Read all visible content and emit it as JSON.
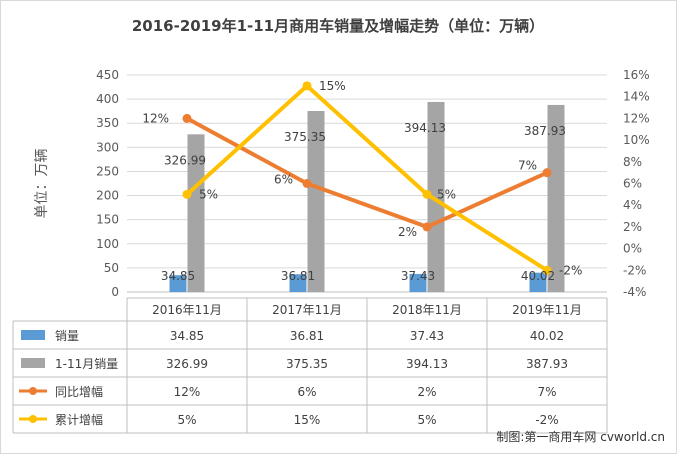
{
  "chart_data": {
    "type": "bar",
    "title": "2016-2019年1-11月商用车销量及增幅走势（单位：万辆）",
    "ylabel": "单位：万辆",
    "categories": [
      "2016年11月",
      "2017年11月",
      "2018年11月",
      "2019年11月"
    ],
    "ylim": [
      0,
      450
    ],
    "y2lim": [
      -4,
      16
    ],
    "yticks": [
      "0",
      "50",
      "100",
      "150",
      "200",
      "250",
      "300",
      "350",
      "400",
      "450"
    ],
    "y2ticks": [
      "-4%",
      "-2%",
      "0%",
      "2%",
      "4%",
      "6%",
      "8%",
      "10%",
      "12%",
      "14%",
      "16%"
    ],
    "series": [
      {
        "name": "销量",
        "type": "bar",
        "axis": "left",
        "color": "#5b9bd5",
        "values": [
          34.85,
          36.81,
          37.43,
          40.02
        ],
        "labels": [
          "34.85",
          "36.81",
          "37.43",
          "40.02"
        ]
      },
      {
        "name": "1-11月销量",
        "type": "bar",
        "axis": "left",
        "color": "#a5a5a5",
        "values": [
          326.99,
          375.35,
          394.13,
          387.93
        ],
        "labels": [
          "326.99",
          "375.35",
          "394.13",
          "387.93"
        ]
      },
      {
        "name": "同比增幅",
        "type": "line",
        "axis": "right",
        "color": "#ed7d31",
        "values": [
          12,
          6,
          2,
          7
        ],
        "labels": [
          "12%",
          "6%",
          "2%",
          "7%"
        ]
      },
      {
        "name": "累计增幅",
        "type": "line",
        "axis": "right",
        "color": "#ffc000",
        "values": [
          5,
          15,
          5,
          -2
        ],
        "labels": [
          "5%",
          "15%",
          "5%",
          "-2%"
        ]
      }
    ],
    "grid": true,
    "legend": "data-table-below"
  },
  "credit": "制图:第一商用车网 cvworld.cn"
}
